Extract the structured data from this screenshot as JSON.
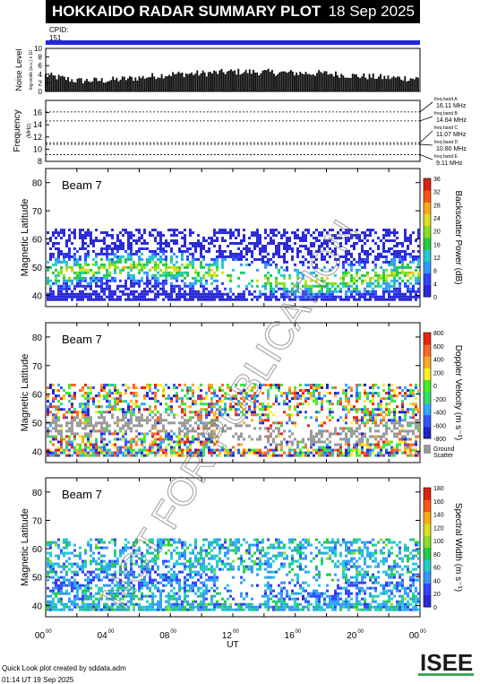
{
  "header": {
    "title": "HOKKAIDO RADAR SUMMARY PLOT",
    "date": "18 Sep 2025",
    "cpid_label": "CPID:",
    "cpid_value": "151"
  },
  "footer": {
    "created_by": "Quick Look plot created by sddata.adm",
    "timestamp": "01:14 UT 19 Sep 2025"
  },
  "logo_text": "ISEE",
  "watermark": "NOT FOR PUBLICATION",
  "colors": {
    "cpid_bar": "#2222ee",
    "ground_scatter": "#999999"
  },
  "chart_data": [
    {
      "type": "bar",
      "id": "noise",
      "ylabel": "Noise Level",
      "ylabel_sub": "log-scale (a.u.) x 10",
      "ylim": [
        0,
        10
      ],
      "yticks": [
        "0",
        "2",
        "4",
        "6",
        "8",
        "10"
      ],
      "x": [
        0,
        2,
        4,
        6,
        8,
        10,
        12,
        14,
        16,
        18,
        20,
        22,
        24
      ],
      "values": [
        3.8,
        2.5,
        2.6,
        3.2,
        4.0,
        4.2,
        4.6,
        4.5,
        4.3,
        4.2,
        3.6,
        3.2,
        3.0
      ]
    },
    {
      "type": "line",
      "id": "frequency",
      "ylabel": "Frequency",
      "ylabel_sub": "(MHz)",
      "ylim": [
        8,
        18
      ],
      "yticks": [
        "8",
        "10",
        "12",
        "14",
        "16"
      ],
      "bands": [
        {
          "name": "freq band A",
          "value": "16.11 MHz",
          "mhz": 16.11
        },
        {
          "name": "freq band B",
          "value": "14.64 MHz",
          "mhz": 14.64
        },
        {
          "name": "freq band C",
          "value": "11.07 MHz",
          "mhz": 11.07
        },
        {
          "name": "freq band D",
          "value": "10.80 MHz",
          "mhz": 10.8
        },
        {
          "name": "freq band E",
          "value": "9.11 MHz",
          "mhz": 9.11
        }
      ]
    },
    {
      "type": "heatmap",
      "id": "power",
      "beam": "Beam  7",
      "ylabel": "Magnetic Latitude",
      "ylim": [
        36,
        85
      ],
      "yticks": [
        "40",
        "50",
        "60",
        "70",
        "80"
      ],
      "colorbar_label": "Backscatter Power (dB)",
      "colorbar_ticks": [
        "0",
        "4",
        "8",
        "12",
        "16",
        "20",
        "24",
        "28",
        "32",
        "36"
      ],
      "colorbar_range": [
        0,
        36
      ]
    },
    {
      "type": "heatmap",
      "id": "velocity",
      "beam": "Beam  7",
      "ylabel": "Magnetic Latitude",
      "ylim": [
        36,
        85
      ],
      "yticks": [
        "40",
        "50",
        "60",
        "70",
        "80"
      ],
      "colorbar_label": "Doppler Velocity (m s⁻¹)",
      "colorbar_ticks": [
        "800",
        "600",
        "400",
        "200",
        "0",
        "-200",
        "-400",
        "-600",
        "-800"
      ],
      "colorbar_range": [
        -800,
        800
      ],
      "ground_label_1": "Ground",
      "ground_label_2": "Scatter"
    },
    {
      "type": "heatmap",
      "id": "width",
      "beam": "Beam  7",
      "ylabel": "Magnetic Latitude",
      "ylim": [
        36,
        85
      ],
      "yticks": [
        "40",
        "50",
        "60",
        "70",
        "80"
      ],
      "colorbar_label": "Spectral Width (m s⁻¹)",
      "colorbar_ticks": [
        "0",
        "20",
        "40",
        "60",
        "80",
        "100",
        "120",
        "140",
        "160",
        "180"
      ],
      "colorbar_range": [
        0,
        180
      ]
    }
  ],
  "xaxis": {
    "xlabel": "UT",
    "ticks": [
      {
        "main": "00",
        "sup": "00",
        "hour": 0
      },
      {
        "main": "04",
        "sup": "00",
        "hour": 4
      },
      {
        "main": "08",
        "sup": "00",
        "hour": 8
      },
      {
        "main": "12",
        "sup": "00",
        "hour": 12
      },
      {
        "main": "16",
        "sup": "00",
        "hour": 16
      },
      {
        "main": "20",
        "sup": "00",
        "hour": 20
      },
      {
        "main": "00",
        "sup": "00",
        "hour": 24
      }
    ]
  }
}
